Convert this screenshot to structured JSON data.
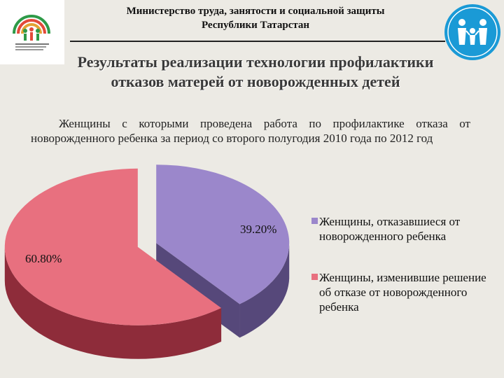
{
  "header": {
    "line1": "Министерство труда, занятости  и социальной защиты",
    "line2": "Республики Татарстан"
  },
  "title": {
    "line1": "Результаты реализации технологии профилактики",
    "line2": "отказов матерей от новорожденных детей"
  },
  "subtitle": "Женщины с которыми проведена работа по профилактике отказа от новорожденного ребенка за период со второго полугодия 2010 года по 2012 год",
  "colors": {
    "purple_top": "#9b87cb",
    "purple_side": "#56487a",
    "pink_top": "#e8707f",
    "pink_side": "#8e2c3a"
  },
  "icons": {
    "left_logo": "ministry-emblem-icon",
    "right_logo": "family-circle-icon"
  },
  "chart_data": {
    "type": "pie",
    "style": "3d-exploded",
    "slices": [
      {
        "label": "Женщины, отказавшиеся от новорожденного ребенка",
        "value": 39.2,
        "display": "39.20%",
        "color": "#9b87cb"
      },
      {
        "label": "Женщины, изменившие решение об отказе от новорожденного ребенка",
        "value": 60.8,
        "display": "60.80%",
        "color": "#e8707f"
      }
    ],
    "legend_placement": "right"
  }
}
